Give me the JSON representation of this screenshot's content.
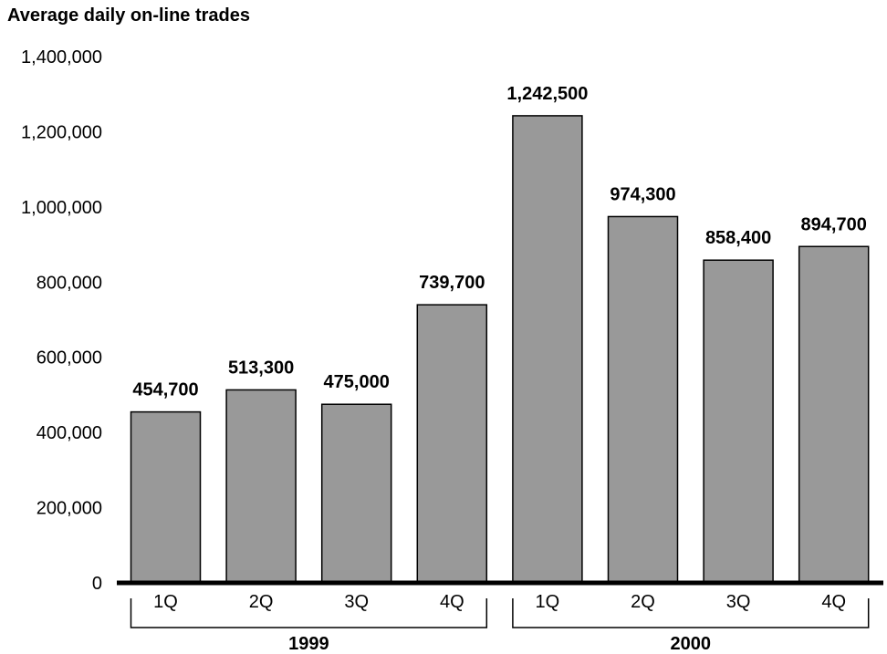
{
  "chart_data": {
    "type": "bar",
    "title": "Average daily on-line trades",
    "xlabel": "",
    "ylabel": "",
    "ylim": [
      0,
      1400000
    ],
    "y_ticks": [
      0,
      200000,
      400000,
      600000,
      800000,
      1000000,
      1200000,
      1400000
    ],
    "y_tick_labels": [
      "0",
      "200,000",
      "400,000",
      "600,000",
      "800,000",
      "1,000,000",
      "1,200,000",
      "1,400,000"
    ],
    "categories": [
      "1Q",
      "2Q",
      "3Q",
      "4Q",
      "1Q",
      "2Q",
      "3Q",
      "4Q"
    ],
    "values": [
      454700,
      513300,
      475000,
      739700,
      1242500,
      974300,
      858400,
      894700
    ],
    "value_labels": [
      "454,700",
      "513,300",
      "475,000",
      "739,700",
      "1,242,500",
      "974,300",
      "858,400",
      "894,700"
    ],
    "groups": [
      {
        "label": "1999",
        "start": 0,
        "end": 3
      },
      {
        "label": "2000",
        "start": 4,
        "end": 7
      }
    ],
    "grid": false,
    "legend": "none",
    "colors": {
      "bar": "#999999",
      "bar_stroke": "#000000",
      "axis": "#000000"
    }
  }
}
